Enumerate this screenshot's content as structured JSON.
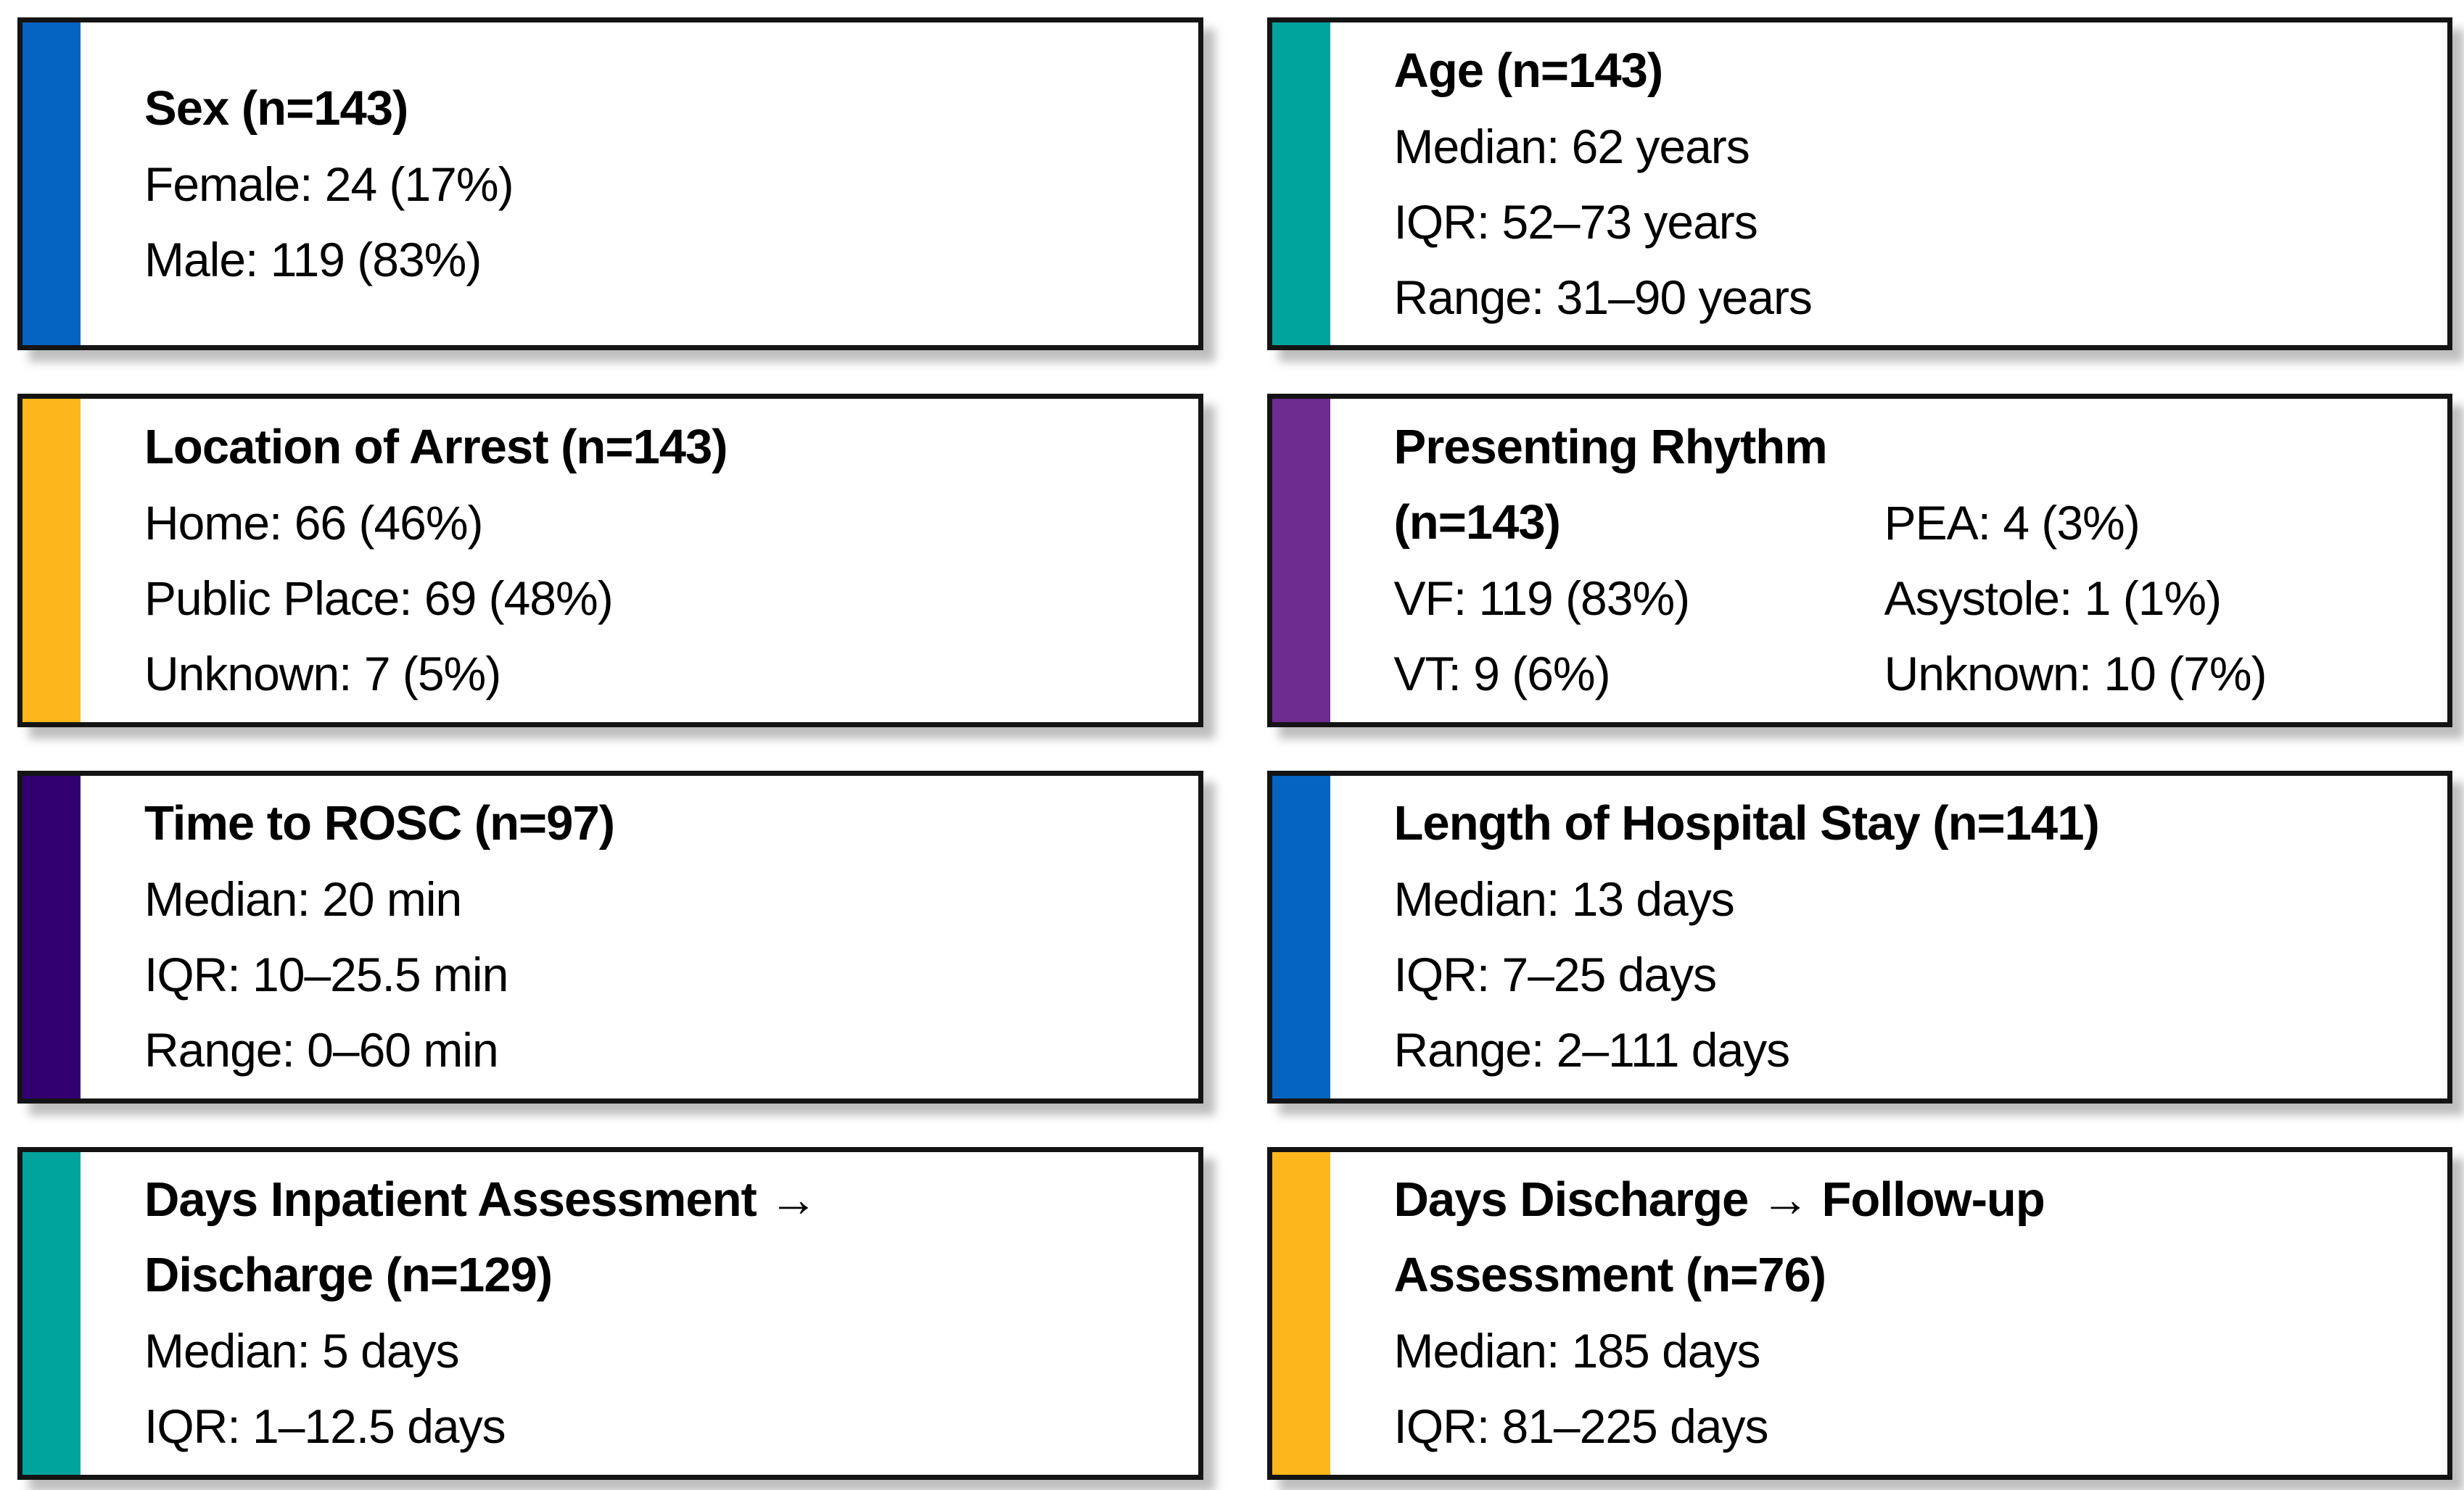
{
  "figure": {
    "description": "Cohort summary statistic cards"
  },
  "accent_colors": {
    "blue": "#0563C1",
    "teal": "#00A49D",
    "amber": "#FDB71C",
    "purple": "#6E2C91",
    "indigo": "#330072"
  },
  "cards": [
    {
      "id": "sex",
      "accent": "#0563C1",
      "title": "Sex (n=143)",
      "lines": [
        "Female: 24 (17%)",
        "Male: 119 (83%)"
      ]
    },
    {
      "id": "age",
      "accent": "#00A49D",
      "title": "Age (n=143)",
      "lines": [
        "Median: 62 years",
        "IQR: 52–73 years",
        "Range: 31–90 years"
      ]
    },
    {
      "id": "location-of-arrest",
      "accent": "#FDB71C",
      "title": "Location of Arrest (n=143)",
      "lines": [
        "Home: 66 (46%)",
        "Public Place: 69 (48%)",
        "Unknown: 7 (5%)"
      ]
    },
    {
      "id": "presenting-rhythm",
      "accent": "#6E2C91",
      "title": "Presenting Rhythm",
      "subtitle": "(n=143)",
      "left": [
        "VF: 119 (83%)",
        "VT: 9 (6%)"
      ],
      "right": [
        "PEA: 4 (3%)",
        "Asystole: 1 (1%)",
        "Unknown: 10 (7%)"
      ]
    },
    {
      "id": "time-to-rosc",
      "accent": "#330072",
      "title": "Time to ROSC (n=97)",
      "lines": [
        "Median: 20 min",
        "IQR: 10–25.5 min",
        "Range: 0–60 min"
      ]
    },
    {
      "id": "length-of-hospital-stay",
      "accent": "#0563C1",
      "title": "Length of Hospital Stay (n=141)",
      "lines": [
        "Median: 13 days",
        "IQR: 7–25 days",
        "Range: 2–111 days"
      ]
    },
    {
      "id": "days-inpatient-assessment-discharge",
      "accent": "#00A49D",
      "title_line1": "Days Inpatient Assessment →",
      "title_line2": "Discharge (n=129)",
      "lines": [
        "Median: 5 days",
        "IQR: 1–12.5 days"
      ]
    },
    {
      "id": "days-discharge-followup",
      "accent": "#FDB71C",
      "title_line1": "Days Discharge → Follow-up",
      "title_line2": "Assessment (n=76)",
      "lines": [
        "Median: 185 days",
        "IQR: 81–225 days"
      ]
    }
  ]
}
